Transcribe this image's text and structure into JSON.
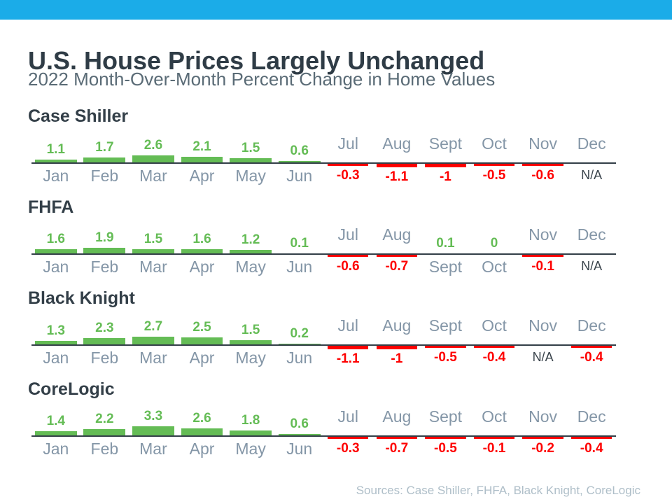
{
  "header": {
    "title": "U.S. House Prices Largely Unchanged",
    "subtitle": "2022 Month-Over-Month Percent Change in Home Values"
  },
  "footer": {
    "sources": "Sources: Case Shiller, FHFA, Black Knight, CoreLogic"
  },
  "theme": {
    "topbar_color": "#1BACE8",
    "title_color": "#2F3C46",
    "subtitle_color": "#5A6B76",
    "heading_color": "#333F48",
    "month_label_color": "#8496A7",
    "positive_color": "#64BC55",
    "negative_color": "#FE0000",
    "na_color": "#39434B",
    "baseline_color": "#333F48",
    "sources_color": "#AEBEC8"
  },
  "chart_data": [
    {
      "type": "bar",
      "title": "Case Shiller",
      "categories": [
        "Jan",
        "Feb",
        "Mar",
        "Apr",
        "May",
        "Jun",
        "Jul",
        "Aug",
        "Sept",
        "Oct",
        "Nov",
        "Dec"
      ],
      "values": [
        1.1,
        1.7,
        2.6,
        2.1,
        1.5,
        0.6,
        -0.3,
        -1.1,
        -1,
        -0.5,
        -0.6,
        null
      ],
      "labels": [
        "1.1",
        "1.7",
        "2.6",
        "2.1",
        "1.5",
        "0.6",
        "-0.3",
        "-1.1",
        "-1",
        "-0.5",
        "-0.6",
        "N/A"
      ],
      "layout": {
        "positive_above_baseline": true,
        "negative_below_baseline": true
      }
    },
    {
      "type": "bar",
      "title": "FHFA",
      "categories": [
        "Jan",
        "Feb",
        "Mar",
        "Apr",
        "May",
        "Jun",
        "Jul",
        "Aug",
        "Sept",
        "Oct",
        "Nov",
        "Dec"
      ],
      "values": [
        1.6,
        1.9,
        1.5,
        1.6,
        1.2,
        0.1,
        -0.6,
        -0.7,
        0.1,
        0,
        -0.1,
        null
      ],
      "labels": [
        "1.6",
        "1.9",
        "1.5",
        "1.6",
        "1.2",
        "0.1",
        "-0.6",
        "-0.7",
        "0.1",
        "0",
        "-0.1",
        "N/A"
      ],
      "layout": {
        "positive_above_baseline": true,
        "negative_below_baseline": true
      }
    },
    {
      "type": "bar",
      "title": "Black Knight",
      "categories": [
        "Jan",
        "Feb",
        "Mar",
        "Apr",
        "May",
        "Jun",
        "Jul",
        "Aug",
        "Sept",
        "Oct",
        "Nov",
        "Dec"
      ],
      "values": [
        1.3,
        2.3,
        2.7,
        2.5,
        1.5,
        0.2,
        -1.1,
        -1,
        -0.5,
        -0.4,
        null,
        -0.4
      ],
      "labels": [
        "1.3",
        "2.3",
        "2.7",
        "2.5",
        "1.5",
        "0.2",
        "-1.1",
        "-1",
        "-0.5",
        "-0.4",
        "N/A",
        "-0.4"
      ],
      "layout": {
        "positive_above_baseline": true,
        "negative_below_baseline": true
      }
    },
    {
      "type": "bar",
      "title": "CoreLogic",
      "categories": [
        "Jan",
        "Feb",
        "Mar",
        "Apr",
        "May",
        "Jun",
        "Jul",
        "Aug",
        "Sept",
        "Oct",
        "Nov",
        "Dec"
      ],
      "values": [
        1.4,
        2.2,
        3.3,
        2.6,
        1.8,
        0.6,
        -0.3,
        -0.7,
        -0.5,
        -0.1,
        -0.2,
        -0.4
      ],
      "labels": [
        "1.4",
        "2.2",
        "3.3",
        "2.6",
        "1.8",
        "0.6",
        "-0.3",
        "-0.7",
        "-0.5",
        "-0.1",
        "-0.2",
        "-0.4"
      ],
      "layout": {
        "positive_above_baseline": true,
        "negative_below_baseline": true
      }
    }
  ]
}
